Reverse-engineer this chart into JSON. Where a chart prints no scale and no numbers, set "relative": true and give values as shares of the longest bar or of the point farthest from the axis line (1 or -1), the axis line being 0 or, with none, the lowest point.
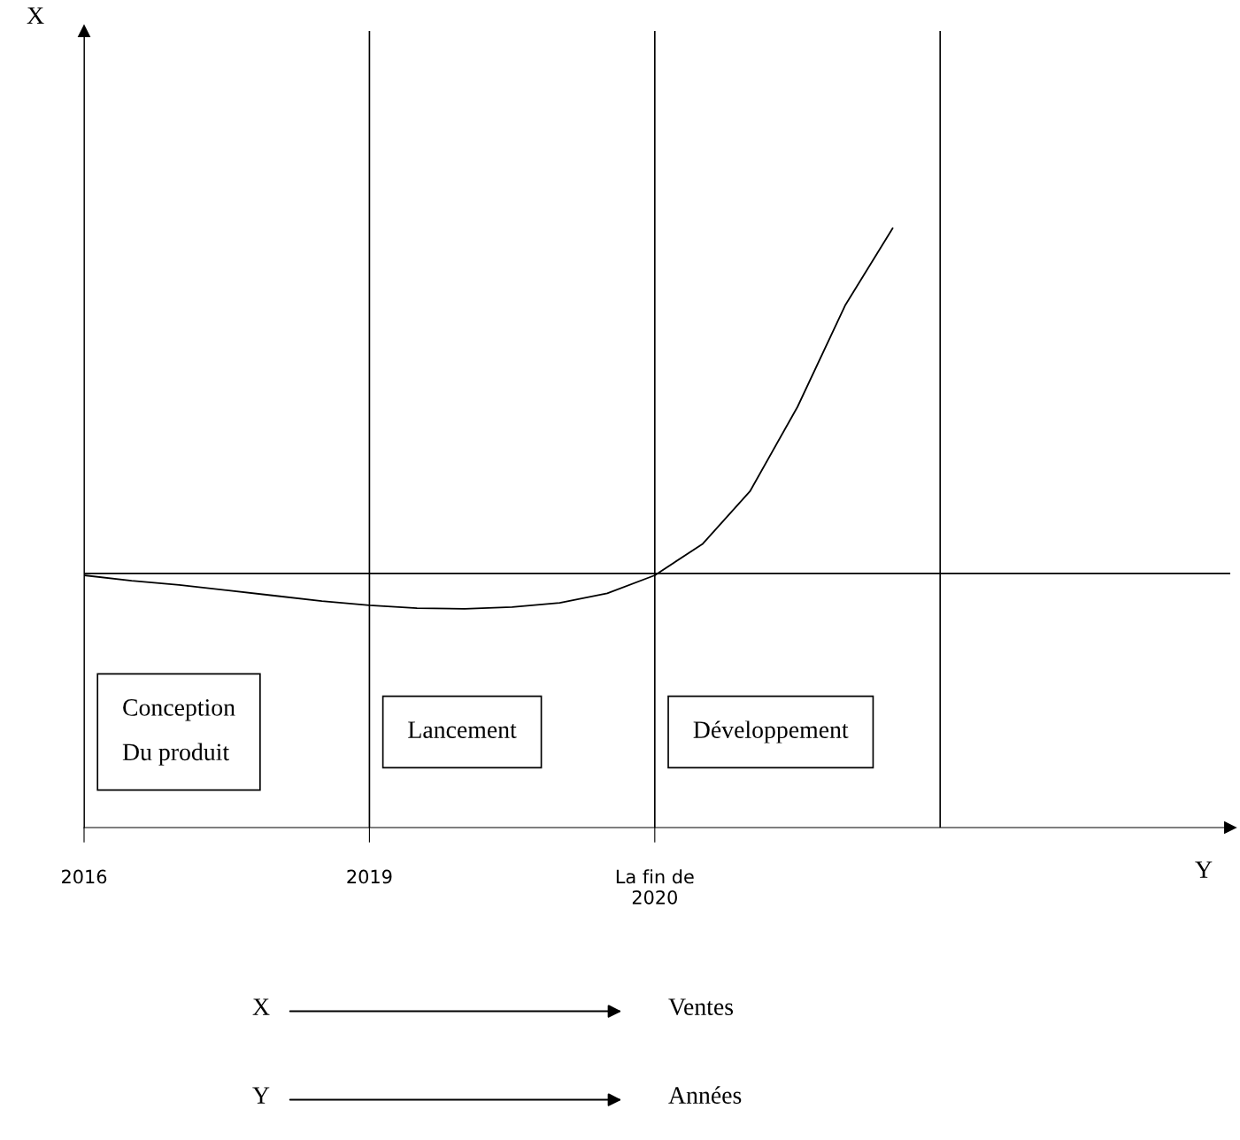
{
  "chart_data": {
    "type": "line",
    "relative": true,
    "xlabel": "Y",
    "categories": [
      "2016",
      null,
      null,
      null,
      null,
      null,
      "2019",
      null,
      null,
      null,
      null,
      null,
      "La fin de\n2020",
      null,
      null,
      null,
      null,
      null,
      null,
      null,
      null,
      null,
      null,
      null,
      null
    ],
    "series": [
      {
        "color": "#000000",
        "values": [
          0.421,
          0.412,
          0.405,
          0.396,
          0.387,
          0.378,
          0.371,
          0.366,
          0.365,
          0.368,
          0.375,
          0.391,
          0.421,
          0.473,
          0.561,
          0.702,
          0.871,
          1,
          null,
          null,
          null,
          null,
          null,
          null,
          null
        ]
      }
    ],
    "ref_lines": [
      {
        "axis": "y",
        "value": 0.424,
        "color": "#000000"
      }
    ],
    "annotations": [
      "Conception\n\nDu produit",
      "Lancement",
      "Développement",
      "X",
      "Ventes",
      "Y",
      "Années",
      "X"
    ],
    "grid": "x",
    "legend": false,
    "marker": "none",
    "line_style": "solid"
  }
}
